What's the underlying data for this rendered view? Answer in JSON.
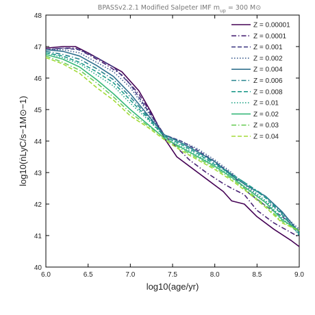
{
  "chart_data": {
    "type": "line",
    "title": "BPASSv2.2.1 Modified Salpeter IMF m",
    "title_sub": "up",
    "title_tail": " = 300 M",
    "title_sun": "⊙",
    "xlabel": "log10(age/yr)",
    "ylabel": "log10(ṅLyC/s−1M⊙−1)",
    "xlim": [
      6.0,
      9.0
    ],
    "ylim": [
      40,
      48
    ],
    "xticks": [
      6.0,
      6.5,
      7.0,
      7.5,
      8.0,
      8.5,
      9.0
    ],
    "yticks": [
      40,
      41,
      42,
      43,
      44,
      45,
      46,
      47,
      48
    ],
    "xtick_labels": [
      "6.0",
      "6.5",
      "7.0",
      "7.5",
      "8.0",
      "8.5",
      "9.0"
    ],
    "ytick_labels": [
      "40",
      "41",
      "42",
      "43",
      "44",
      "45",
      "46",
      "47",
      "48"
    ],
    "grid": false,
    "legend_position": "top-right",
    "series": [
      {
        "name": "Z = 0.00001",
        "color": "#440154",
        "dash": "solid",
        "x": [
          6.0,
          6.2,
          6.35,
          6.5,
          6.7,
          6.9,
          7.1,
          7.25,
          7.4,
          7.55,
          7.7,
          7.9,
          8.1,
          8.2,
          8.35,
          8.5,
          8.7,
          8.9,
          9.0
        ],
        "y": [
          46.95,
          47.0,
          47.0,
          46.8,
          46.5,
          46.2,
          45.6,
          44.9,
          44.1,
          43.5,
          43.2,
          42.8,
          42.4,
          42.1,
          42.0,
          41.6,
          41.2,
          40.85,
          40.65
        ]
      },
      {
        "name": "Z = 0.0001",
        "color": "#482173",
        "dash": "dashdot",
        "x": [
          6.0,
          6.2,
          6.35,
          6.5,
          6.7,
          6.9,
          7.1,
          7.25,
          7.4,
          7.55,
          7.7,
          7.9,
          8.1,
          8.2,
          8.35,
          8.5,
          8.7,
          8.9,
          9.0
        ],
        "y": [
          46.9,
          46.95,
          46.95,
          46.75,
          46.45,
          46.1,
          45.5,
          44.85,
          44.2,
          43.8,
          43.4,
          43.0,
          42.65,
          42.5,
          42.3,
          41.8,
          41.4,
          41.1,
          40.95
        ]
      },
      {
        "name": "Z = 0.001",
        "color": "#433e85",
        "dash": "dashed",
        "x": [
          6.0,
          6.2,
          6.4,
          6.6,
          6.8,
          7.0,
          7.2,
          7.4,
          7.6,
          7.8,
          8.0,
          8.2,
          8.4,
          8.6,
          8.8,
          9.0
        ],
        "y": [
          46.9,
          46.95,
          46.9,
          46.65,
          46.35,
          45.8,
          45.0,
          44.2,
          44.0,
          43.7,
          43.35,
          42.95,
          42.35,
          41.95,
          41.6,
          41.15
        ]
      },
      {
        "name": "Z = 0.002",
        "color": "#38598c",
        "dash": "dotted",
        "x": [
          6.0,
          6.2,
          6.4,
          6.6,
          6.8,
          7.0,
          7.2,
          7.4,
          7.6,
          7.8,
          8.0,
          8.2,
          8.4,
          8.6,
          8.8,
          9.0
        ],
        "y": [
          46.9,
          46.9,
          46.8,
          46.5,
          46.2,
          45.7,
          44.95,
          44.2,
          44.0,
          43.75,
          43.4,
          43.0,
          42.5,
          42.1,
          41.7,
          41.2
        ]
      },
      {
        "name": "Z = 0.004",
        "color": "#30708e",
        "dash": "solid",
        "x": [
          6.0,
          6.2,
          6.4,
          6.6,
          6.8,
          7.0,
          7.2,
          7.4,
          7.6,
          7.8,
          8.0,
          8.2,
          8.4,
          8.6,
          8.8,
          9.0
        ],
        "y": [
          46.9,
          46.85,
          46.7,
          46.4,
          46.05,
          45.5,
          44.85,
          44.2,
          43.95,
          43.65,
          43.35,
          42.9,
          42.55,
          42.25,
          41.75,
          41.1
        ]
      },
      {
        "name": "Z = 0.006",
        "color": "#25838e",
        "dash": "dashdot",
        "x": [
          6.0,
          6.2,
          6.4,
          6.6,
          6.8,
          7.0,
          7.2,
          7.4,
          7.6,
          7.8,
          8.0,
          8.2,
          8.4,
          8.6,
          8.8,
          9.0
        ],
        "y": [
          46.85,
          46.75,
          46.6,
          46.3,
          45.95,
          45.4,
          44.8,
          44.2,
          43.95,
          43.65,
          43.3,
          42.95,
          42.6,
          42.25,
          41.7,
          41.0
        ]
      },
      {
        "name": "Z = 0.008",
        "color": "#1e9a8a",
        "dash": "dashed",
        "x": [
          6.0,
          6.2,
          6.4,
          6.6,
          6.8,
          7.0,
          7.2,
          7.4,
          7.6,
          7.8,
          8.0,
          8.2,
          8.4,
          8.6,
          8.8,
          9.0
        ],
        "y": [
          46.8,
          46.7,
          46.5,
          46.2,
          45.85,
          45.3,
          44.75,
          44.15,
          43.9,
          43.6,
          43.25,
          42.95,
          42.6,
          42.2,
          41.65,
          41.05
        ]
      },
      {
        "name": "Z = 0.01",
        "color": "#20a486",
        "dash": "dotted",
        "x": [
          6.0,
          6.2,
          6.4,
          6.6,
          6.8,
          7.0,
          7.2,
          7.4,
          7.6,
          7.8,
          8.0,
          8.2,
          8.4,
          8.6,
          8.8,
          9.0
        ],
        "y": [
          46.8,
          46.65,
          46.45,
          46.1,
          45.75,
          45.2,
          44.7,
          44.15,
          43.85,
          43.55,
          43.2,
          42.9,
          42.55,
          42.1,
          41.55,
          41.05
        ]
      },
      {
        "name": "Z = 0.02",
        "color": "#35b779",
        "dash": "solid",
        "x": [
          6.0,
          6.2,
          6.4,
          6.6,
          6.8,
          7.0,
          7.2,
          7.4,
          7.6,
          7.8,
          8.0,
          8.2,
          8.4,
          8.6,
          8.8,
          9.0
        ],
        "y": [
          46.75,
          46.6,
          46.35,
          45.95,
          45.5,
          45.0,
          44.55,
          44.1,
          43.8,
          43.5,
          43.2,
          42.85,
          42.45,
          42.05,
          41.5,
          41.15
        ]
      },
      {
        "name": "Z = 0.03",
        "color": "#6ccd5a",
        "dash": "dashdot",
        "x": [
          6.0,
          6.2,
          6.4,
          6.6,
          6.8,
          7.0,
          7.2,
          7.4,
          7.6,
          7.8,
          8.0,
          8.2,
          8.4,
          8.6,
          8.8,
          9.0
        ],
        "y": [
          46.7,
          46.5,
          46.25,
          45.85,
          45.4,
          44.9,
          44.5,
          44.1,
          43.75,
          43.45,
          43.15,
          42.8,
          42.4,
          41.95,
          41.45,
          41.15
        ]
      },
      {
        "name": "Z = 0.04",
        "color": "#a2da37",
        "dash": "dashed",
        "x": [
          6.0,
          6.2,
          6.4,
          6.6,
          6.8,
          7.0,
          7.2,
          7.4,
          7.6,
          7.8,
          8.0,
          8.2,
          8.4,
          8.6,
          8.8,
          9.0
        ],
        "y": [
          46.65,
          46.45,
          46.15,
          45.7,
          45.3,
          44.8,
          44.45,
          44.05,
          43.7,
          43.4,
          43.1,
          42.75,
          42.35,
          41.9,
          41.4,
          41.15
        ]
      }
    ]
  }
}
